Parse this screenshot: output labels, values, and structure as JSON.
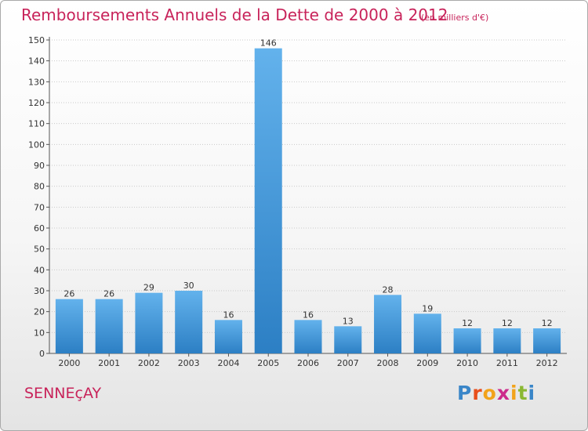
{
  "header": {
    "title": "Remboursements Annuels de la Dette de 2000 à 2012",
    "unit": "(en milliers d'€)"
  },
  "footer": {
    "town": "SENNEçAY",
    "logo_letters": [
      {
        "char": "P",
        "color": "#3a86c8"
      },
      {
        "char": "r",
        "color": "#e84e1b"
      },
      {
        "char": "o",
        "color": "#f2a31a"
      },
      {
        "char": "x",
        "color": "#cc2a8b"
      },
      {
        "char": "i",
        "color": "#f2a31a"
      },
      {
        "char": "t",
        "color": "#8ab832"
      },
      {
        "char": "i",
        "color": "#3a86c8"
      }
    ]
  },
  "colors": {
    "title": "#c8235a",
    "bar_top": "#63b2ec",
    "bar_bottom": "#2c7fc4",
    "grid": "#c9c9c9"
  },
  "chart_data": {
    "type": "bar",
    "title": "Remboursements Annuels de la Dette de 2000 à 2012",
    "subtitle": "(en milliers d'€)",
    "categories": [
      "2000",
      "2001",
      "2002",
      "2003",
      "2004",
      "2005",
      "2006",
      "2007",
      "2008",
      "2009",
      "2010",
      "2011",
      "2012"
    ],
    "values": [
      26,
      26,
      29,
      30,
      16,
      146,
      16,
      13,
      28,
      19,
      12,
      12,
      12
    ],
    "ylim": [
      0,
      150
    ],
    "yticks": [
      0,
      10,
      20,
      30,
      40,
      50,
      60,
      70,
      80,
      90,
      100,
      110,
      120,
      130,
      140,
      150
    ],
    "grid": true
  }
}
